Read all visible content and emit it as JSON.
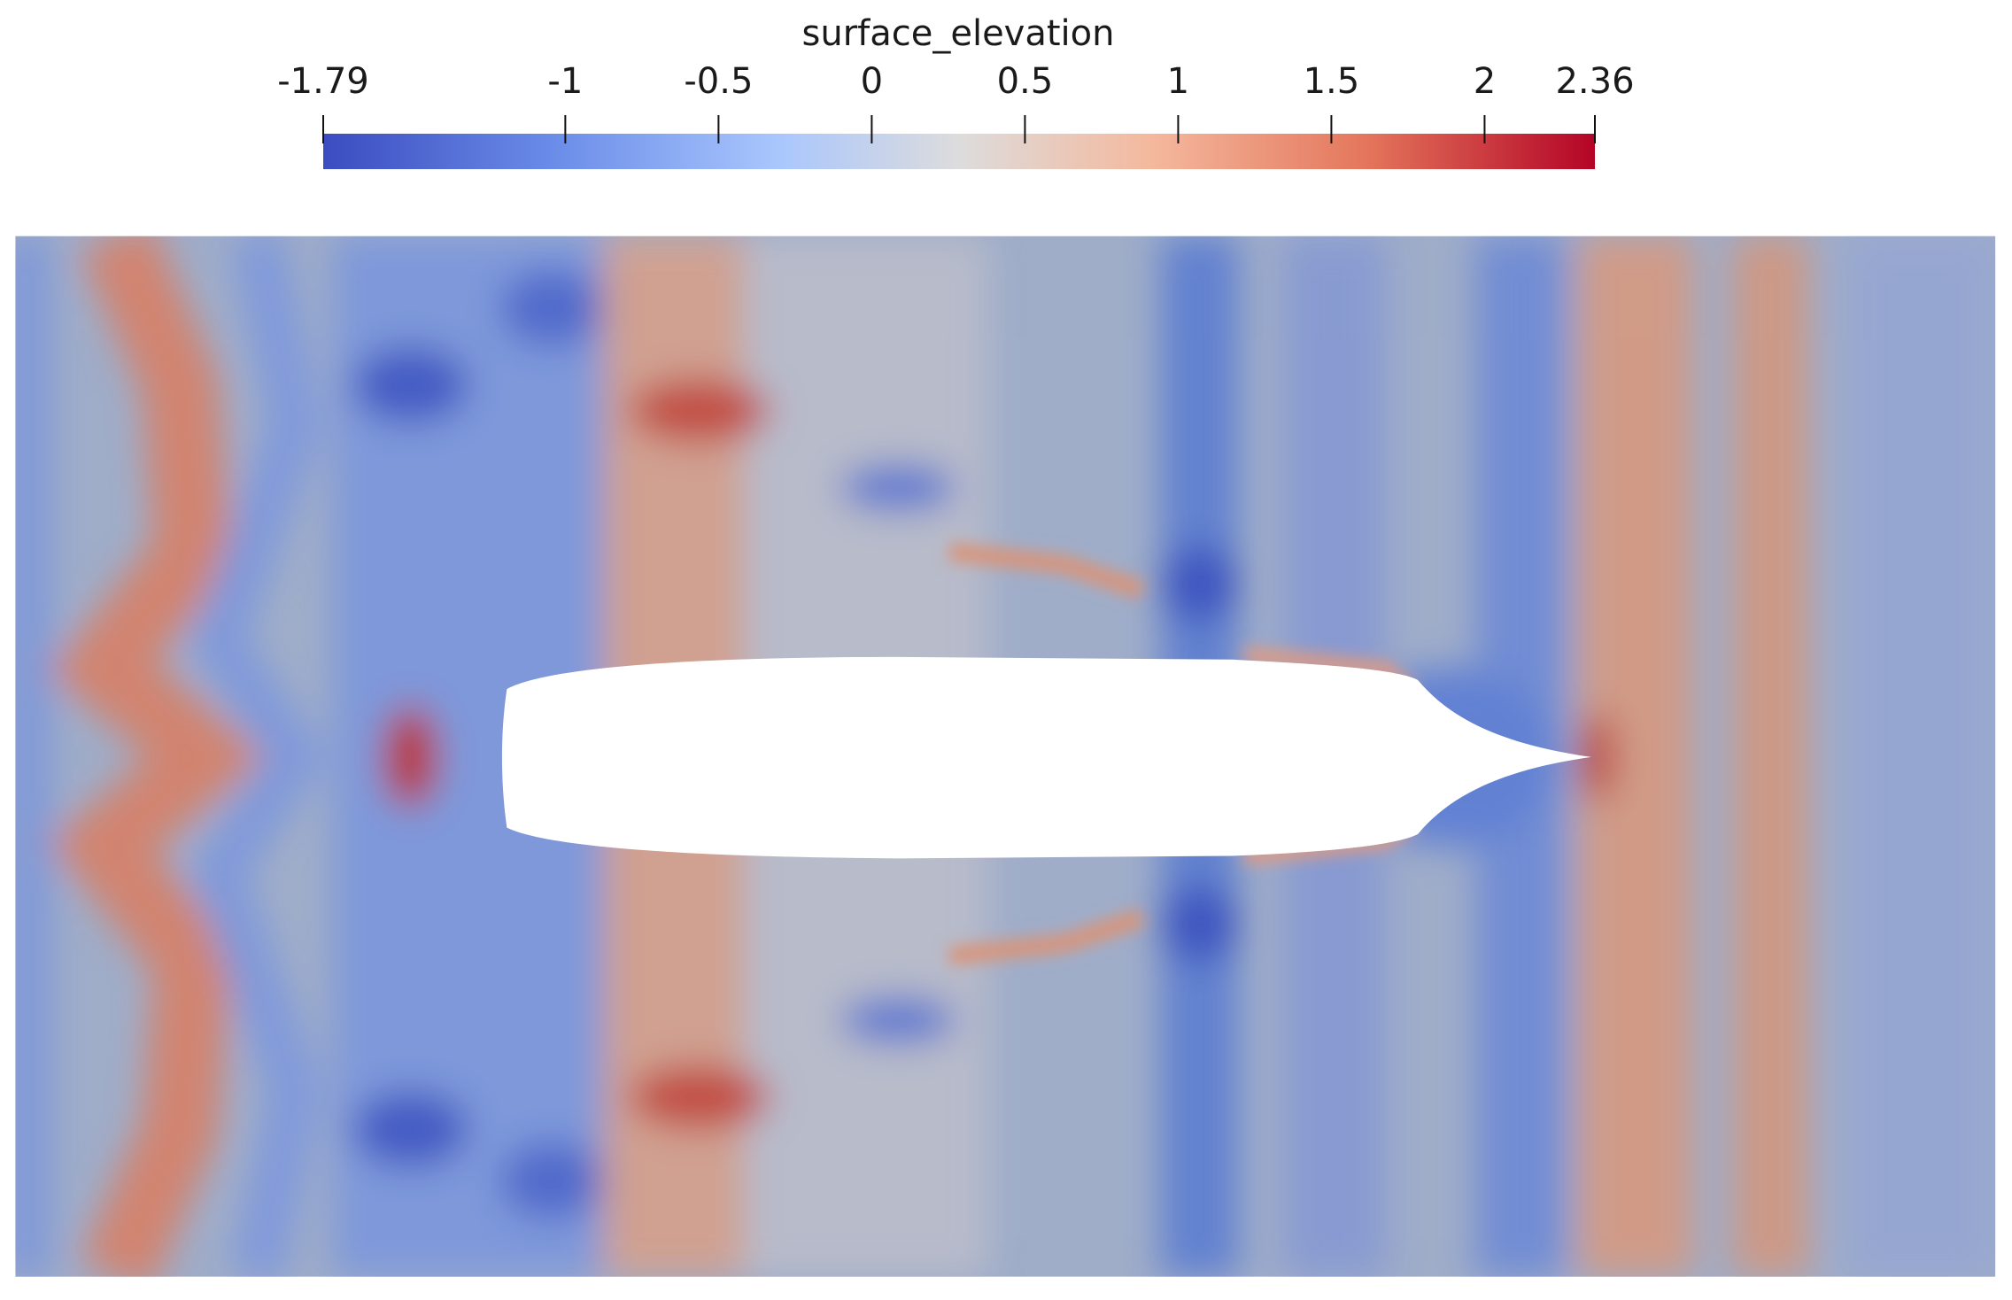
{
  "chart_data": {
    "type": "heatmap",
    "title": "surface_elevation",
    "colorbar_lim": [
      -1.79,
      2.36
    ],
    "colorbar_ticks": [
      -1.79,
      -1,
      -0.5,
      0,
      0.5,
      1,
      1.5,
      2,
      2.36
    ]
  }
}
